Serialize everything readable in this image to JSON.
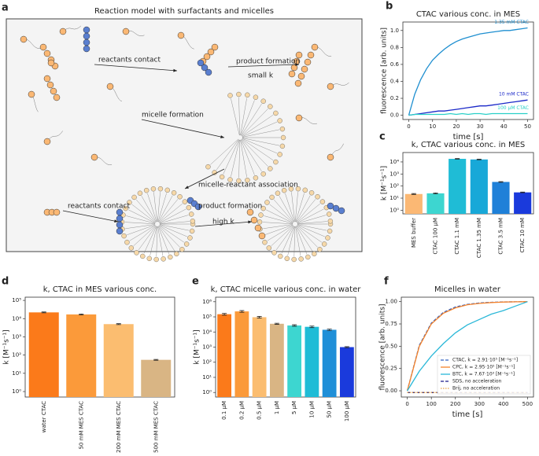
{
  "diagram": {
    "panel": "a",
    "title": "Reaction model with surfactants and micelles",
    "labels": [
      "reactants contact",
      "product formation",
      "small k",
      "micelle formation",
      "micelle-reactant association",
      "reactants contact",
      "product formation",
      "high k"
    ]
  },
  "chart_data": [
    {
      "type": "line",
      "panel": "b",
      "title": "CTAC various conc. in MES",
      "xlabel": "time [s]",
      "ylabel": "fluorescence [arb. units]",
      "x": [
        0,
        2.5,
        5,
        7.5,
        10,
        12.5,
        15,
        17.5,
        20,
        22.5,
        25,
        27.5,
        30,
        32.5,
        35,
        37.5,
        40,
        42.5,
        45,
        47.5,
        50
      ],
      "series": [
        {
          "name": "1.35 mM CTAC",
          "color": "#1f8fd0",
          "linestyle": "solid",
          "values": [
            0,
            0.25,
            0.42,
            0.55,
            0.65,
            0.72,
            0.78,
            0.83,
            0.87,
            0.9,
            0.92,
            0.94,
            0.96,
            0.97,
            0.98,
            0.99,
            1.0,
            1.0,
            1.01,
            1.02,
            1.03
          ]
        },
        {
          "name": "10 mM CTAC",
          "color": "#1a28c8",
          "linestyle": "solid",
          "values": [
            0,
            0.01,
            0.02,
            0.03,
            0.04,
            0.05,
            0.05,
            0.06,
            0.07,
            0.08,
            0.09,
            0.1,
            0.11,
            0.11,
            0.12,
            0.13,
            0.14,
            0.15,
            0.16,
            0.17,
            0.18
          ]
        },
        {
          "name": "100 µM CTAC",
          "color": "#2ad0c8",
          "linestyle": "solid",
          "values": [
            0,
            0.01,
            0.01,
            0.01,
            0.01,
            0.01,
            0.01,
            0.02,
            0.01,
            0.02,
            0.01,
            0.02,
            0.02,
            0.01,
            0.02,
            0.02,
            0.02,
            0.02,
            0.02,
            0.02,
            0.02
          ]
        }
      ],
      "xlim": [
        -2.5,
        52.5
      ],
      "xticks": [
        0,
        10,
        20,
        30,
        40,
        50
      ],
      "ylim": [
        -0.05,
        1.1
      ],
      "yticks": [
        {
          "value": 0,
          "label": "0.0"
        },
        0.2,
        0.4,
        0.6,
        0.8,
        {
          "value": 1,
          "label": "1.0"
        }
      ]
    },
    {
      "type": "bar",
      "panel": "c",
      "title": "k, CTAC various conc. in MES",
      "ylabel": "k [M⁻¹s⁻¹]",
      "log_scale": true,
      "categories": [
        "MES buffer",
        "CTAC 100 µM",
        "CTAC 1.1 mM",
        "CTAC 1.35 mM",
        "CTAC 3.5 mM",
        "CTAC 10 mM"
      ],
      "values": [
        22,
        25,
        18000,
        16000,
        220,
        30
      ],
      "errors": [
        2,
        2,
        1000,
        1000,
        15,
        2
      ],
      "colors": [
        "#fbb874",
        "#3dd6d0",
        "#1fbcd6",
        "#18a8d8",
        "#1f80d8",
        "#1a3adc"
      ],
      "ylim": [
        0.5,
        60000
      ],
      "yticks": [
        {
          "value": 1,
          "label": "10⁰"
        },
        {
          "value": 10,
          "label": "10¹"
        },
        {
          "value": 100,
          "label": "10²"
        },
        {
          "value": 1000,
          "label": "10³"
        },
        {
          "value": 10000,
          "label": "10⁴"
        }
      ]
    },
    {
      "type": "bar",
      "panel": "d",
      "title": "k, CTAC in MES various conc.",
      "ylabel": "k [M⁻¹s⁻¹]",
      "log_scale": true,
      "categories": [
        "water CTAC",
        "50 mM MES CTAC",
        "200 mM MES CTAC",
        "500 mM MES CTAC"
      ],
      "values": [
        22000,
        17000,
        5000,
        55
      ],
      "errors": [
        1200,
        1000,
        300,
        3
      ],
      "colors": [
        "#fb7a1a",
        "#fb9a3a",
        "#fbbd70",
        "#d9b584"
      ],
      "ylim": [
        0.5,
        150000
      ],
      "yticks": [
        {
          "value": 1,
          "label": "10⁰"
        },
        {
          "value": 10,
          "label": "10¹"
        },
        {
          "value": 100,
          "label": "10²"
        },
        {
          "value": 1000,
          "label": "10³"
        },
        {
          "value": 10000,
          "label": "10⁴"
        },
        {
          "value": 100000,
          "label": "10⁵"
        }
      ]
    },
    {
      "type": "bar",
      "panel": "e",
      "title": "k, CTAC micelle various conc. in water",
      "ylabel": "k [M⁻¹s⁻¹]",
      "log_scale": true,
      "categories": [
        "0.1 µM",
        "0.2 µM",
        "0.5 µM",
        "1 µM",
        "5 µM",
        "10 µM",
        "50 µM",
        "100 µM"
      ],
      "values": [
        150000,
        230000,
        95000,
        35000,
        27000,
        22000,
        14000,
        1000
      ],
      "errors": [
        20000,
        30000,
        12000,
        3000,
        3000,
        2500,
        1500,
        80
      ],
      "colors": [
        "#fb7a1a",
        "#fb9a3a",
        "#fbbd70",
        "#d9b584",
        "#3dd6d0",
        "#1fbcd6",
        "#1f8fd8",
        "#1a3adc"
      ],
      "ylim": [
        0.5,
        2000000
      ],
      "yticks": [
        {
          "value": 1,
          "label": "10⁰"
        },
        {
          "value": 10,
          "label": "10¹"
        },
        {
          "value": 100,
          "label": "10²"
        },
        {
          "value": 1000,
          "label": "10³"
        },
        {
          "value": 10000,
          "label": "10⁴"
        },
        {
          "value": 100000,
          "label": "10⁵"
        },
        {
          "value": 1000000,
          "label": "10⁶"
        }
      ]
    },
    {
      "type": "line",
      "panel": "f",
      "title": "Micelles in water",
      "xlabel": "time [s]",
      "ylabel": "fluorescence [arb. units]",
      "legend": "lower right",
      "x": [
        0,
        50,
        100,
        150,
        200,
        250,
        300,
        350,
        400,
        450,
        500
      ],
      "series": [
        {
          "name": "CTAC, k = 2.91·10⁵ [M⁻¹s⁻¹]",
          "color": "#3060c0",
          "linestyle": "dashed",
          "values": [
            0,
            0.51,
            0.76,
            0.88,
            0.94,
            0.97,
            0.985,
            0.993,
            0.997,
            0.998,
            1.0
          ]
        },
        {
          "name": "CPC, k = 2.95·10⁵ [M⁻¹s⁻¹]",
          "color": "#f5822a",
          "linestyle": "solid",
          "values": [
            0,
            0.5,
            0.75,
            0.87,
            0.93,
            0.965,
            0.98,
            0.99,
            0.995,
            0.998,
            1.0
          ]
        },
        {
          "name": "BTC, k = 7.67·10³ [M⁻¹s⁻¹]",
          "color": "#2ab8d8",
          "linestyle": "solid",
          "values": [
            0,
            0.22,
            0.39,
            0.53,
            0.65,
            0.74,
            0.8,
            0.86,
            0.9,
            0.95,
            1.0
          ]
        },
        {
          "name": "SDS, no acceleration",
          "color": "#1a1a8a",
          "linestyle": "dashed",
          "values": [
            -0.02,
            -0.02,
            -0.02,
            -0.02,
            -0.02,
            -0.02,
            -0.02,
            -0.02,
            -0.02,
            -0.02,
            -0.02
          ]
        },
        {
          "name": "Brij, no acceleration",
          "color": "#e8a040",
          "linestyle": "dotted",
          "values": [
            -0.02,
            -0.02,
            -0.02,
            -0.02,
            -0.02,
            -0.02,
            -0.02,
            -0.02,
            -0.02,
            -0.02,
            -0.02
          ]
        }
      ],
      "xlim": [
        -25,
        525
      ],
      "xticks": [
        0,
        100,
        200,
        300,
        400,
        500
      ],
      "ylim": [
        -0.07,
        1.05
      ],
      "yticks": [
        {
          "value": 0,
          "label": "0.00"
        },
        0.25,
        {
          "value": 0.5,
          "label": "0.50"
        },
        0.75,
        {
          "value": 1,
          "label": "1.00"
        }
      ]
    }
  ]
}
